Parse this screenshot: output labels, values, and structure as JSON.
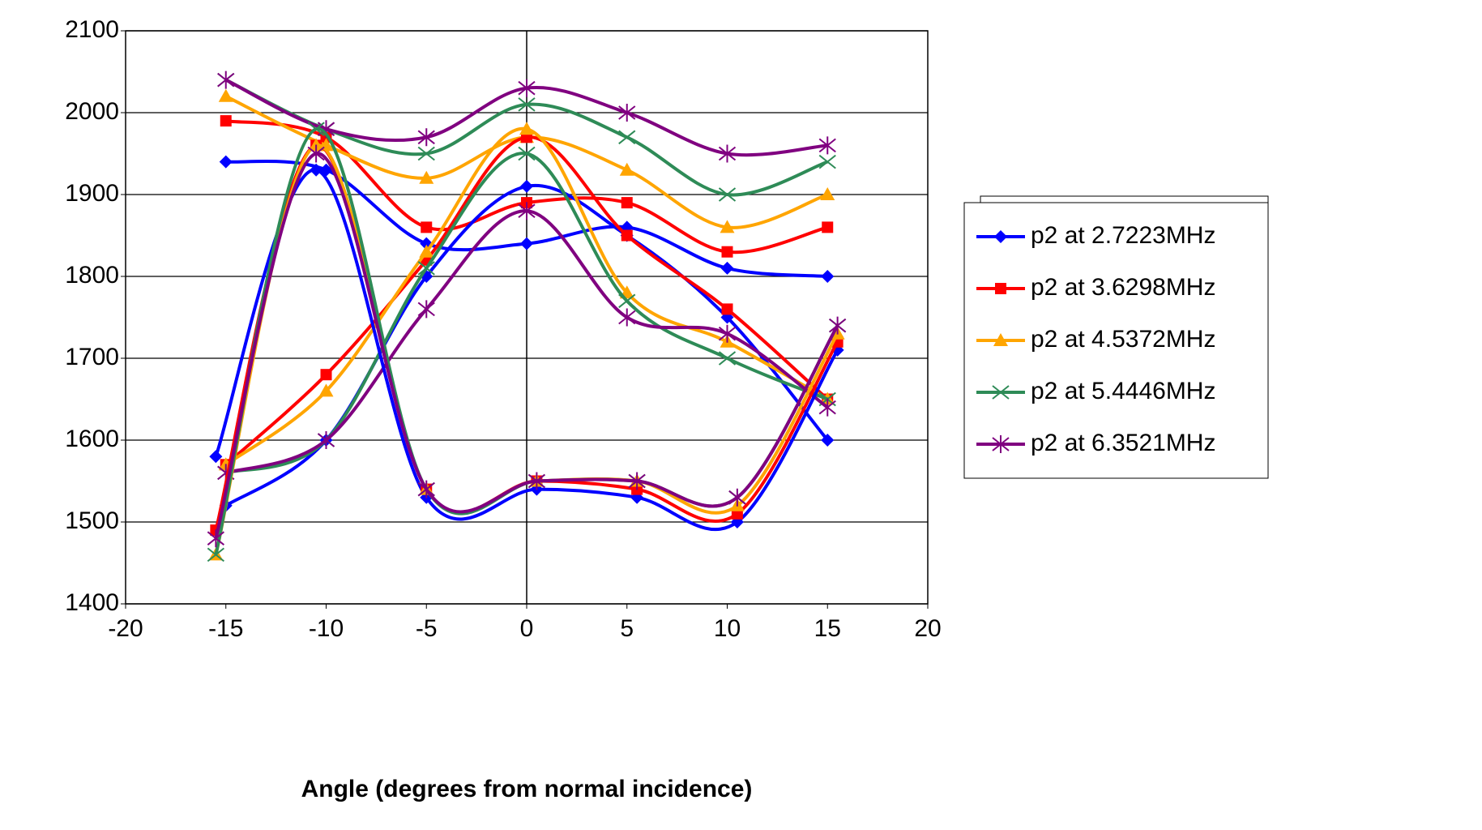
{
  "chart_data": {
    "type": "line",
    "x_label": "Angle (degrees from normal incidence)",
    "xlim": [
      -20,
      20
    ],
    "xticks": [
      -20,
      -15,
      -10,
      -5,
      0,
      5,
      10,
      15,
      20
    ],
    "ylim": [
      1400,
      2100
    ],
    "yticks": [
      1400,
      1500,
      1600,
      1700,
      1800,
      1900,
      2000,
      2100
    ],
    "grid": true,
    "smooth": true,
    "legend": "right",
    "series": [
      {
        "name": "p2 at 2.7223MHz",
        "color": "#0000ff",
        "marker": "diamond",
        "x": [
          -15,
          -10,
          -5,
          0,
          5,
          10,
          15
        ],
        "values": [
          1940,
          1930,
          1840,
          1840,
          1860,
          1810,
          1800
        ]
      },
      {
        "name": "p2 at 3.6298MHz",
        "color": "#ff0000",
        "marker": "square",
        "x": [
          -15,
          -10,
          -5,
          0,
          5,
          10,
          15
        ],
        "values": [
          1990,
          1970,
          1860,
          1890,
          1890,
          1830,
          1860
        ]
      },
      {
        "name": "p2 at 4.5372MHz",
        "color": "#ffa500",
        "marker": "triangle",
        "x": [
          -15,
          -10,
          -5,
          0,
          5,
          10,
          15
        ],
        "values": [
          2020,
          1960,
          1920,
          1970,
          1930,
          1860,
          1900
        ]
      },
      {
        "name": "p2 at 5.4446MHz",
        "color": "#2e8b57",
        "marker": "x",
        "x": [
          -15,
          -10,
          -5,
          0,
          5,
          10,
          15
        ],
        "values": [
          2040,
          1980,
          1950,
          2010,
          1970,
          1900,
          1940
        ]
      },
      {
        "name": "p2 at 6.3521MHz",
        "color": "#800080",
        "marker": "star",
        "x": [
          -15,
          -10,
          -5,
          0,
          5,
          10,
          15
        ],
        "values": [
          2040,
          1980,
          1970,
          2030,
          2000,
          1950,
          1960
        ]
      },
      {
        "color": "#0000ff",
        "marker": "diamond",
        "x": [
          -15,
          -10,
          -5,
          0,
          5,
          10,
          15
        ],
        "values": [
          1520,
          1600,
          1800,
          1910,
          1850,
          1750,
          1600
        ]
      },
      {
        "color": "#ff0000",
        "marker": "square",
        "x": [
          -15,
          -10,
          -5,
          0,
          5,
          10,
          15
        ],
        "values": [
          1570,
          1680,
          1820,
          1970,
          1850,
          1760,
          1650
        ]
      },
      {
        "color": "#ffa500",
        "marker": "triangle",
        "x": [
          -15,
          -10,
          -5,
          0,
          5,
          10,
          15
        ],
        "values": [
          1570,
          1660,
          1830,
          1980,
          1780,
          1720,
          1650
        ]
      },
      {
        "color": "#2e8b57",
        "marker": "x",
        "x": [
          -15,
          -10,
          -5,
          0,
          5,
          10,
          15
        ],
        "values": [
          1560,
          1600,
          1810,
          1950,
          1770,
          1700,
          1650
        ]
      },
      {
        "color": "#800080",
        "marker": "star",
        "x": [
          -15,
          -10,
          -5,
          0,
          5,
          10,
          15
        ],
        "values": [
          1560,
          1600,
          1760,
          1880,
          1750,
          1730,
          1640
        ]
      },
      {
        "color": "#0000ff",
        "marker": "diamond",
        "x": [
          -15.5,
          -10.5,
          -5,
          0.5,
          5.5,
          10.5,
          15.5
        ],
        "values": [
          1580,
          1930,
          1530,
          1540,
          1530,
          1500,
          1710
        ]
      },
      {
        "color": "#ff0000",
        "marker": "square",
        "x": [
          -15.5,
          -10.5,
          -5,
          0.5,
          5.5,
          10.5,
          15.5
        ],
        "values": [
          1490,
          1960,
          1540,
          1550,
          1540,
          1510,
          1720
        ]
      },
      {
        "color": "#ffa500",
        "marker": "triangle",
        "x": [
          -15.5,
          -10.5,
          -5,
          0.5,
          5.5,
          10.5,
          15.5
        ],
        "values": [
          1460,
          1960,
          1540,
          1550,
          1550,
          1520,
          1730
        ]
      },
      {
        "color": "#2e8b57",
        "marker": "x",
        "x": [
          -15.5,
          -10.5,
          -5,
          0.5,
          5.5,
          10.5,
          15.5
        ],
        "values": [
          1460,
          1980,
          1540,
          1550,
          1550,
          1530,
          1740
        ]
      },
      {
        "color": "#800080",
        "marker": "star",
        "x": [
          -15.5,
          -10.5,
          -5,
          0.5,
          5.5,
          10.5,
          15.5
        ],
        "values": [
          1480,
          1950,
          1540,
          1550,
          1550,
          1530,
          1740
        ]
      }
    ]
  }
}
